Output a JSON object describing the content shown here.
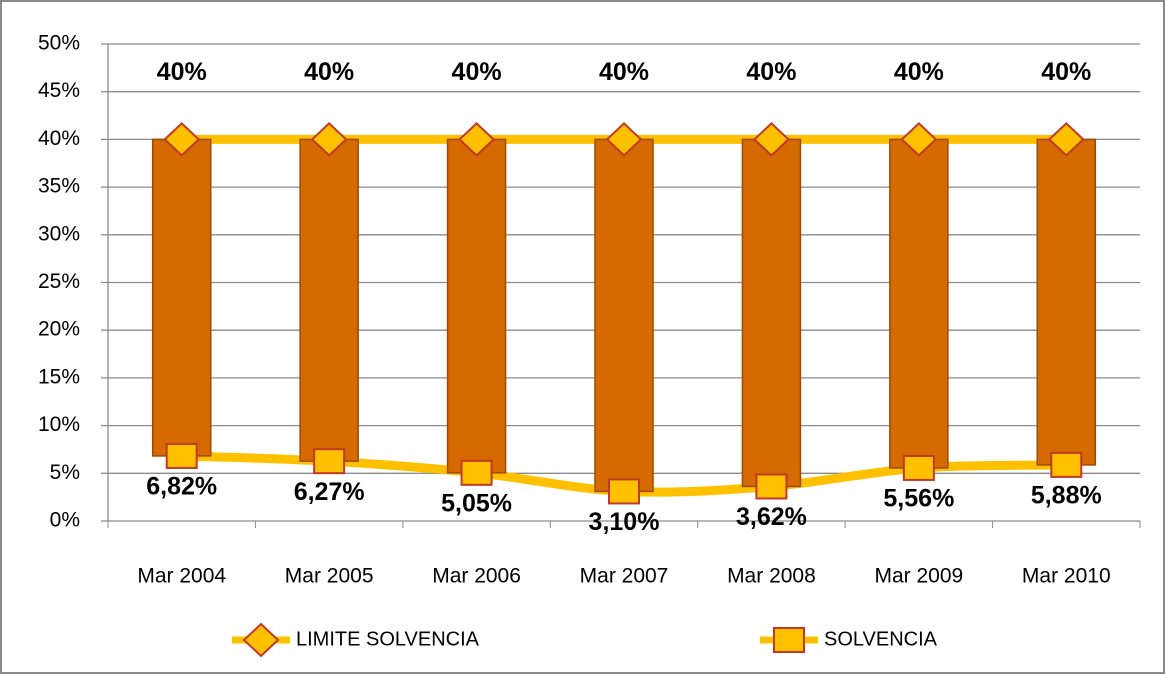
{
  "chart_data": {
    "type": "line",
    "categories": [
      "Mar 2004",
      "Mar 2005",
      "Mar 2006",
      "Mar 2007",
      "Mar 2008",
      "Mar 2009",
      "Mar 2010"
    ],
    "series": [
      {
        "name": "LIMITE SOLVENCIA",
        "color": "#ffc000",
        "marker": "diamond",
        "values": [
          40,
          40,
          40,
          40,
          40,
          40,
          40
        ],
        "value_labels": [
          "40%",
          "40%",
          "40%",
          "40%",
          "40%",
          "40%",
          "40%"
        ]
      },
      {
        "name": "SOLVENCIA",
        "color": "#ffc000",
        "marker": "square",
        "values": [
          6.82,
          6.27,
          5.05,
          3.1,
          3.62,
          5.56,
          5.88
        ],
        "value_labels": [
          "6,82%",
          "6,27%",
          "5,05%",
          "3,10%",
          "3,62%",
          "5,56%",
          "5,88%"
        ]
      }
    ],
    "high_low_bars": {
      "color": "#d46a00"
    },
    "ylim": [
      0,
      50
    ],
    "yticks": [
      {
        "value": 0,
        "label": "0%"
      },
      {
        "value": 5,
        "label": "5%"
      },
      {
        "value": 10,
        "label": "10%"
      },
      {
        "value": 15,
        "label": "15%"
      },
      {
        "value": 20,
        "label": "20%"
      },
      {
        "value": 25,
        "label": "25%"
      },
      {
        "value": 30,
        "label": "30%"
      },
      {
        "value": 35,
        "label": "35%"
      },
      {
        "value": 40,
        "label": "40%"
      },
      {
        "value": 45,
        "label": "45%"
      },
      {
        "value": 50,
        "label": "50%"
      }
    ],
    "grid": true,
    "legend": "bottom"
  }
}
